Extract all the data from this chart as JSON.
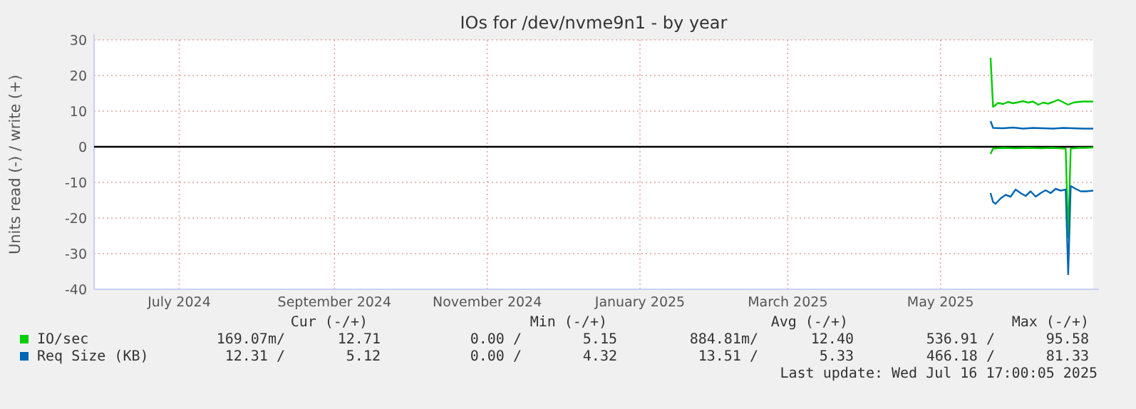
{
  "chart_data": {
    "type": "line",
    "title": "IOs for /dev/nvme9n1 - by year",
    "ylabel": "Units read (-) / write (+)",
    "xlim": [
      "2024-06-12",
      "2025-07-16"
    ],
    "xticks": [
      {
        "value": "2024-07-16",
        "label": "July 2024"
      },
      {
        "value": "2024-09-16",
        "label": "September 2024"
      },
      {
        "value": "2024-11-16",
        "label": "November 2024"
      },
      {
        "value": "2025-01-16",
        "label": "January 2025"
      },
      {
        "value": "2025-03-16",
        "label": "March 2025"
      },
      {
        "value": "2025-05-16",
        "label": "May 2025"
      }
    ],
    "ylim": [
      -40,
      30
    ],
    "yticks": [
      -40,
      -30,
      -20,
      -10,
      0,
      10,
      20,
      30
    ],
    "grid": true,
    "legend": "bottom",
    "ref_lines": [
      {
        "axis": "y",
        "value": 0,
        "color": "#000000"
      }
    ],
    "series": [
      {
        "name": "IO/sec",
        "color": "#00cc00",
        "x": [
          "2025-06-05",
          "2025-06-06",
          "2025-06-08",
          "2025-06-10",
          "2025-06-12",
          "2025-06-14",
          "2025-06-16",
          "2025-06-18",
          "2025-06-20",
          "2025-06-22",
          "2025-06-24",
          "2025-06-26",
          "2025-06-28",
          "2025-06-30",
          "2025-07-02",
          "2025-07-04",
          "2025-07-06",
          "2025-07-08",
          "2025-07-10",
          "2025-07-12",
          "2025-07-14",
          "2025-07-16"
        ],
        "values": [
          25,
          11.2,
          12.3,
          12,
          12.6,
          12.2,
          12.5,
          12.8,
          12.4,
          12.7,
          11.8,
          12.4,
          12.1,
          12.6,
          13.2,
          12.5,
          11.8,
          12.4,
          12.6,
          12.7,
          12.7,
          12.7
        ]
      },
      {
        "color": "#00cc00",
        "x": [
          "2025-06-05",
          "2025-06-06",
          "2025-06-10",
          "2025-06-15",
          "2025-06-20",
          "2025-06-25",
          "2025-06-30",
          "2025-07-05",
          "2025-07-06",
          "2025-07-07",
          "2025-07-10",
          "2025-07-13",
          "2025-07-16"
        ],
        "values": [
          -2,
          -0.5,
          -0.3,
          -0.4,
          -0.3,
          -0.4,
          -0.3,
          -0.5,
          -25.5,
          -0.5,
          -0.3,
          -0.3,
          -0.2
        ]
      },
      {
        "name": "Req Size (KB)",
        "color": "#0066b3",
        "x": [
          "2025-06-05",
          "2025-06-06",
          "2025-06-10",
          "2025-06-14",
          "2025-06-18",
          "2025-06-22",
          "2025-06-26",
          "2025-06-30",
          "2025-07-04",
          "2025-07-08",
          "2025-07-12",
          "2025-07-16"
        ],
        "values": [
          7.2,
          5.3,
          5.2,
          5.4,
          5.1,
          5.3,
          5.2,
          5.1,
          5.3,
          5.2,
          5.1,
          5.1
        ]
      },
      {
        "color": "#0066b3",
        "x": [
          "2025-06-05",
          "2025-06-06",
          "2025-06-07",
          "2025-06-09",
          "2025-06-11",
          "2025-06-13",
          "2025-06-15",
          "2025-06-17",
          "2025-06-19",
          "2025-06-21",
          "2025-06-23",
          "2025-06-25",
          "2025-06-27",
          "2025-06-29",
          "2025-07-01",
          "2025-07-03",
          "2025-07-05",
          "2025-07-06",
          "2025-07-07",
          "2025-07-09",
          "2025-07-11",
          "2025-07-13",
          "2025-07-16"
        ],
        "values": [
          -13,
          -15.5,
          -16,
          -14.5,
          -13.5,
          -14,
          -12,
          -13,
          -13.8,
          -12.5,
          -14,
          -13,
          -12.2,
          -13,
          -11.8,
          -12.3,
          -12,
          -35.8,
          -11,
          -11.8,
          -12.5,
          -12.5,
          -12.3
        ]
      }
    ],
    "annotations": [
      "Cur (-/+)",
      "Min (-/+)",
      "Avg (-/+)",
      "Max (-/+)",
      "169.07m/",
      "12.71",
      "0.00 /",
      "5.15",
      "884.81m/",
      "12.40",
      "536.91 /",
      "95.58",
      "12.31 /",
      "5.12",
      "0.00 /",
      "4.32",
      "13.51 /",
      "5.33",
      "466.18 /",
      "81.33",
      "Last update: Wed Jul 16 17:00:05 2025"
    ]
  }
}
